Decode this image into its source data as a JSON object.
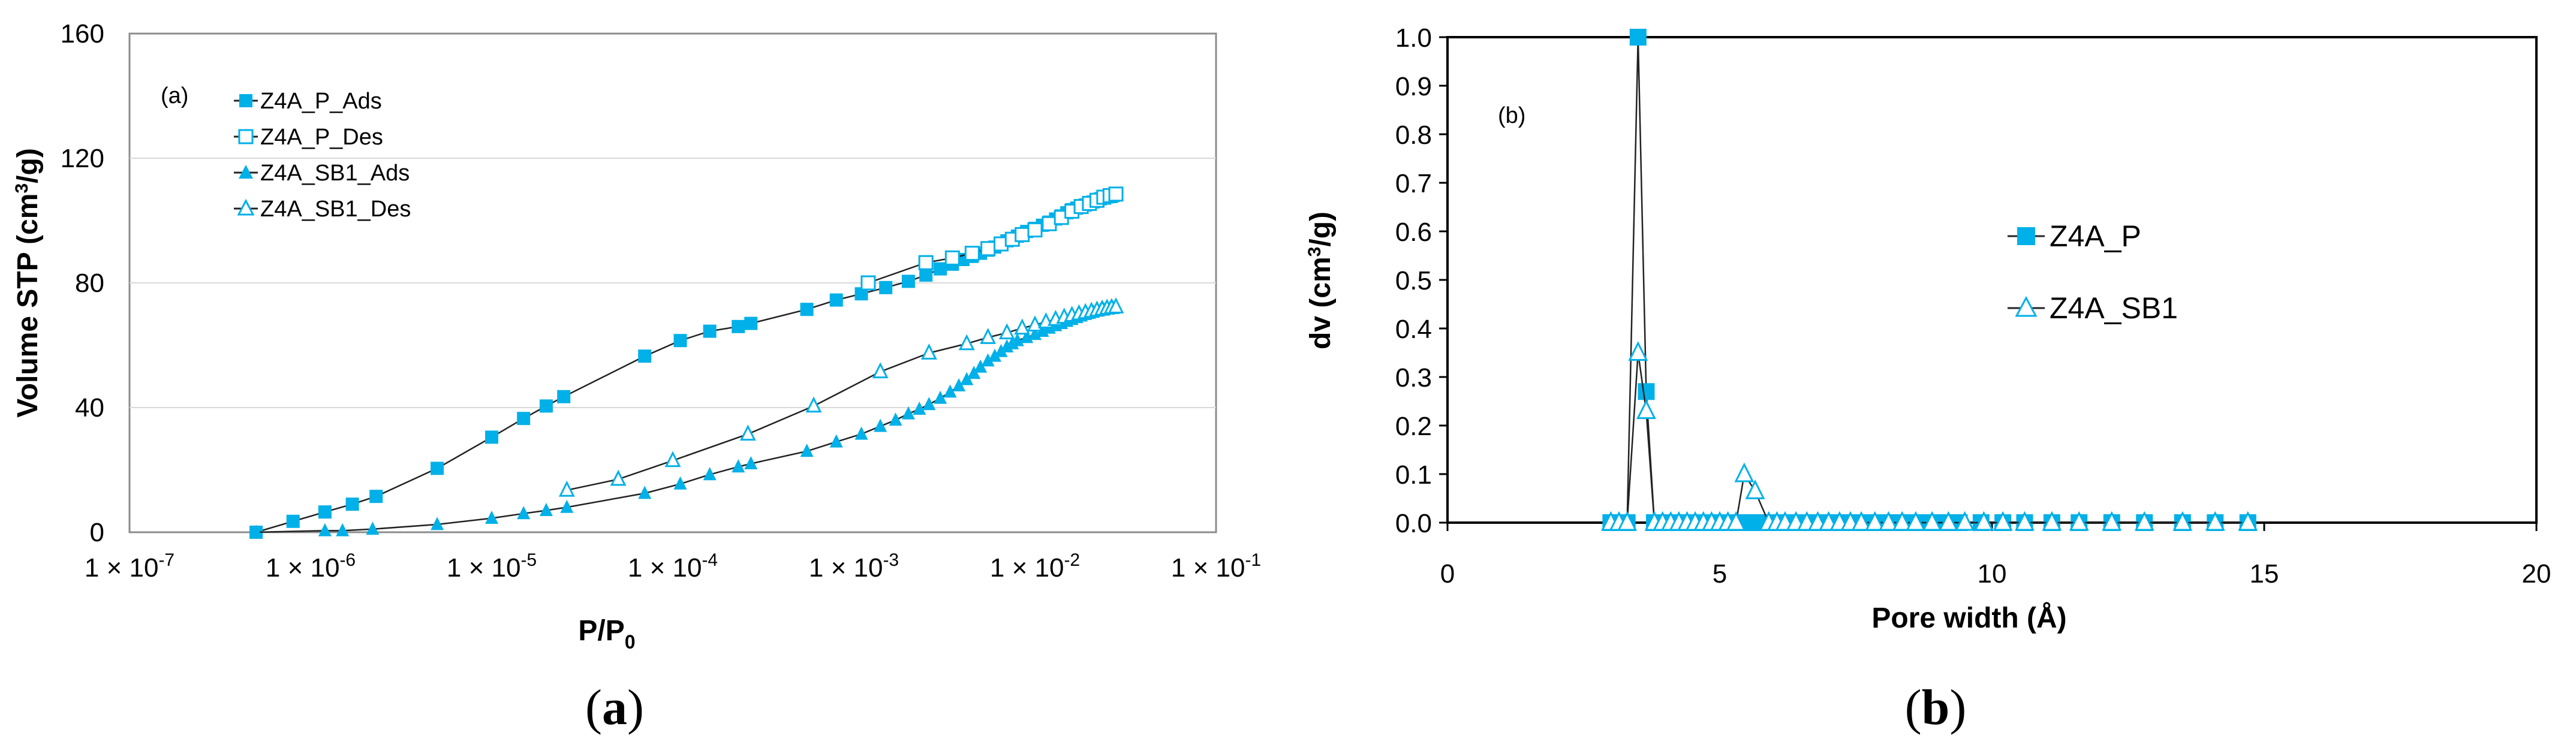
{
  "colors": {
    "series": "#00B0E8",
    "line": "#222222",
    "axis": "#8c8c8c"
  },
  "chart_data": [
    {
      "type": "line",
      "panel": "a",
      "panel_tag": "(a)",
      "caption_open": "(",
      "caption_letter": "a",
      "caption_close": ")",
      "xscale": "log",
      "xlabel": "P/P",
      "xlabel_sub": "0",
      "ylabel": "Volume STP (cm",
      "ylabel_sup": "3",
      "ylabel_end": "/g)",
      "xlim": [
        1e-07,
        0.1
      ],
      "ylim": [
        0,
        160
      ],
      "yticks": [
        0,
        40,
        80,
        120,
        160
      ],
      "ytick_labels": [
        "0",
        "40",
        "80",
        "120",
        "160"
      ],
      "xticks": [
        1e-07,
        1e-06,
        1e-05,
        0.0001,
        0.001,
        0.01,
        0.1
      ],
      "xtick_labels": [
        "1 × 10",
        "1 × 10",
        "1 × 10",
        "1 × 10",
        "1 × 10",
        "1 × 10",
        "1 × 10"
      ],
      "xtick_exps": [
        "-7",
        "-6",
        "-5",
        "-4",
        "-3",
        "-2",
        "-1"
      ],
      "legend_position": "top-left",
      "series": [
        {
          "name": "Z4A_P_Ads",
          "marker": "square-filled",
          "x": [
            5e-07,
            8e-07,
            1.2e-06,
            1.7e-06,
            2.3e-06,
            5e-06,
            1e-05,
            1.5e-05,
            2e-05,
            2.5e-05,
            7e-05,
            0.00011,
            0.00016,
            0.00023,
            0.00027,
            0.00055,
            0.0008,
            0.0011,
            0.0015,
            0.002,
            0.0025,
            0.003,
            0.0035,
            0.004,
            0.0045,
            0.005,
            0.0055,
            0.006,
            0.0065,
            0.007,
            0.008,
            0.009,
            0.01,
            0.011,
            0.012,
            0.013,
            0.014,
            0.015,
            0.016,
            0.017,
            0.018,
            0.019,
            0.02,
            0.021,
            0.022,
            0.023,
            0.024,
            0.025,
            0.026,
            0.027
          ],
          "y": [
            0,
            3.5,
            6.5,
            9,
            11.5,
            20.5,
            30.5,
            36.5,
            40.5,
            43.5,
            56.5,
            61.5,
            64.5,
            66,
            67,
            71.5,
            74.5,
            76.5,
            78.5,
            80.5,
            82.5,
            84.5,
            86,
            87.5,
            88.5,
            89.5,
            90.5,
            91.5,
            92.5,
            93.5,
            95,
            96.5,
            97.5,
            98.5,
            99.5,
            100.5,
            101.5,
            102.5,
            103.5,
            104,
            104.5,
            105,
            105.5,
            106,
            106.5,
            107,
            107.3,
            107.6,
            108,
            108
          ]
        },
        {
          "name": "Z4A_P_Des",
          "marker": "square-open",
          "x": [
            0.0012,
            0.0025,
            0.0035,
            0.0045,
            0.0055,
            0.0065,
            0.0075,
            0.0085,
            0.01,
            0.012,
            0.014,
            0.016,
            0.018,
            0.02,
            0.022,
            0.024,
            0.026,
            0.028
          ],
          "y": [
            80,
            86.5,
            88,
            89.5,
            91,
            92.5,
            94,
            95.5,
            97,
            99,
            101,
            103,
            104.5,
            105.5,
            106.5,
            107.5,
            108,
            108.5
          ]
        },
        {
          "name": "Z4A_SB1_Ads",
          "marker": "triangle-filled",
          "x": [
            5e-07,
            1.2e-06,
            1.5e-06,
            2.2e-06,
            5e-06,
            1e-05,
            1.5e-05,
            2e-05,
            2.6e-05,
            7e-05,
            0.00011,
            0.00016,
            0.00023,
            0.00027,
            0.00055,
            0.0008,
            0.0011,
            0.0014,
            0.0017,
            0.002,
            0.0023,
            0.0026,
            0.003,
            0.0034,
            0.0038,
            0.0042,
            0.0046,
            0.005,
            0.0055,
            0.006,
            0.0065,
            0.007,
            0.0075,
            0.008,
            0.009,
            0.01,
            0.011,
            0.012,
            0.013,
            0.014,
            0.015,
            0.016,
            0.017,
            0.018,
            0.019,
            0.02,
            0.021,
            0.022,
            0.023,
            0.024,
            0.025,
            0.026,
            0.027
          ],
          "y": [
            0,
            0.5,
            0.5,
            1,
            2.5,
            4.5,
            6,
            7,
            8,
            12.5,
            15.5,
            18.5,
            21,
            22,
            26,
            29,
            31.5,
            34,
            36,
            38,
            39.5,
            41,
            43,
            45,
            47,
            49,
            51,
            53,
            55,
            56.5,
            58,
            59.5,
            60.5,
            61.5,
            62.5,
            63.5,
            64.5,
            65.5,
            66.3,
            67,
            67.7,
            68.3,
            68.9,
            69.4,
            69.9,
            70.3,
            70.7,
            71,
            71.3,
            71.5,
            71.7,
            71.9,
            72
          ]
        },
        {
          "name": "Z4A_SB1_Des",
          "marker": "triangle-open",
          "x": [
            2.6e-05,
            5e-05,
            0.0001,
            0.00026,
            0.0006,
            0.0014,
            0.0026,
            0.0042,
            0.0055,
            0.007,
            0.0085,
            0.01,
            0.0115,
            0.013,
            0.0145,
            0.016,
            0.0175,
            0.019,
            0.0205,
            0.022,
            0.0235,
            0.025,
            0.0265,
            0.028
          ],
          "y": [
            13.5,
            17,
            23,
            31.5,
            40.5,
            51.5,
            57.5,
            60.5,
            62.5,
            64,
            65.5,
            66.5,
            67.5,
            68.3,
            69,
            69.6,
            70.1,
            70.5,
            70.9,
            71.3,
            71.6,
            71.9,
            72.1,
            72.3
          ]
        }
      ]
    },
    {
      "type": "line",
      "panel": "b",
      "panel_tag": "(b)",
      "caption_open": "(",
      "caption_letter": "b",
      "caption_close": ")",
      "xlabel": "Pore width (Å)",
      "ylabel": "dv (cm",
      "ylabel_sup": "3",
      "ylabel_end": "/g)",
      "xlim": [
        0,
        20
      ],
      "ylim": [
        0,
        1.0
      ],
      "xticks": [
        0,
        5,
        10,
        15,
        20
      ],
      "xtick_labels": [
        "0",
        "5",
        "10",
        "15",
        "20"
      ],
      "yticks": [
        0,
        0.1,
        0.2,
        0.3,
        0.4,
        0.5,
        0.6,
        0.7,
        0.8,
        0.9,
        1.0
      ],
      "ytick_labels": [
        "0.0",
        "0.1",
        "0.2",
        "0.3",
        "0.4",
        "0.5",
        "0.6",
        "0.7",
        "0.8",
        "0.9",
        "1.0"
      ],
      "legend_position": "center-right",
      "series": [
        {
          "name": "Z4A_P",
          "marker": "square-filled",
          "x": [
            3.0,
            3.15,
            3.3,
            3.5,
            3.65,
            3.8,
            3.95,
            4.1,
            4.25,
            4.4,
            4.55,
            4.7,
            4.85,
            5.0,
            5.15,
            5.3,
            5.45,
            5.6,
            5.75,
            5.9,
            6.05,
            6.2,
            6.35,
            6.5,
            6.65,
            6.8,
            6.95,
            7.1,
            7.25,
            7.4,
            7.55,
            7.7,
            7.9,
            8.1,
            8.3,
            8.5,
            8.8,
            9.1,
            9.4,
            9.8,
            10.2,
            10.6,
            11.1,
            11.6,
            12.2,
            12.8,
            13.5,
            14.1,
            14.7
          ],
          "y": [
            0,
            0,
            0,
            1.0,
            0.27,
            0,
            0,
            0,
            0,
            0,
            0,
            0,
            0,
            0,
            0,
            0,
            0,
            0,
            0,
            0,
            0,
            0,
            0,
            0,
            0,
            0,
            0,
            0,
            0,
            0,
            0,
            0,
            0,
            0,
            0,
            0,
            0,
            0,
            0,
            0,
            0,
            0,
            0,
            0,
            0,
            0,
            0,
            0,
            0
          ]
        },
        {
          "name": "Z4A_SB1",
          "marker": "triangle-open",
          "x": [
            3.0,
            3.15,
            3.3,
            3.5,
            3.65,
            3.8,
            3.95,
            4.1,
            4.25,
            4.4,
            4.55,
            4.7,
            4.85,
            5.0,
            5.15,
            5.3,
            5.45,
            5.65,
            5.9,
            6.05,
            6.2,
            6.4,
            6.6,
            6.8,
            7.0,
            7.2,
            7.4,
            7.6,
            7.85,
            8.1,
            8.35,
            8.6,
            8.9,
            9.2,
            9.5,
            9.85,
            10.2,
            10.6,
            11.1,
            11.6,
            12.2,
            12.8,
            13.5,
            14.1,
            14.7
          ],
          "y": [
            0,
            0,
            0,
            0.35,
            0.23,
            0,
            0,
            0,
            0,
            0,
            0,
            0,
            0,
            0,
            0,
            0,
            0.1,
            0.065,
            0,
            0,
            0,
            0,
            0,
            0,
            0,
            0,
            0,
            0,
            0,
            0,
            0,
            0,
            0,
            0,
            0,
            0,
            0,
            0,
            0,
            0,
            0,
            0,
            0,
            0,
            0
          ]
        }
      ]
    }
  ]
}
